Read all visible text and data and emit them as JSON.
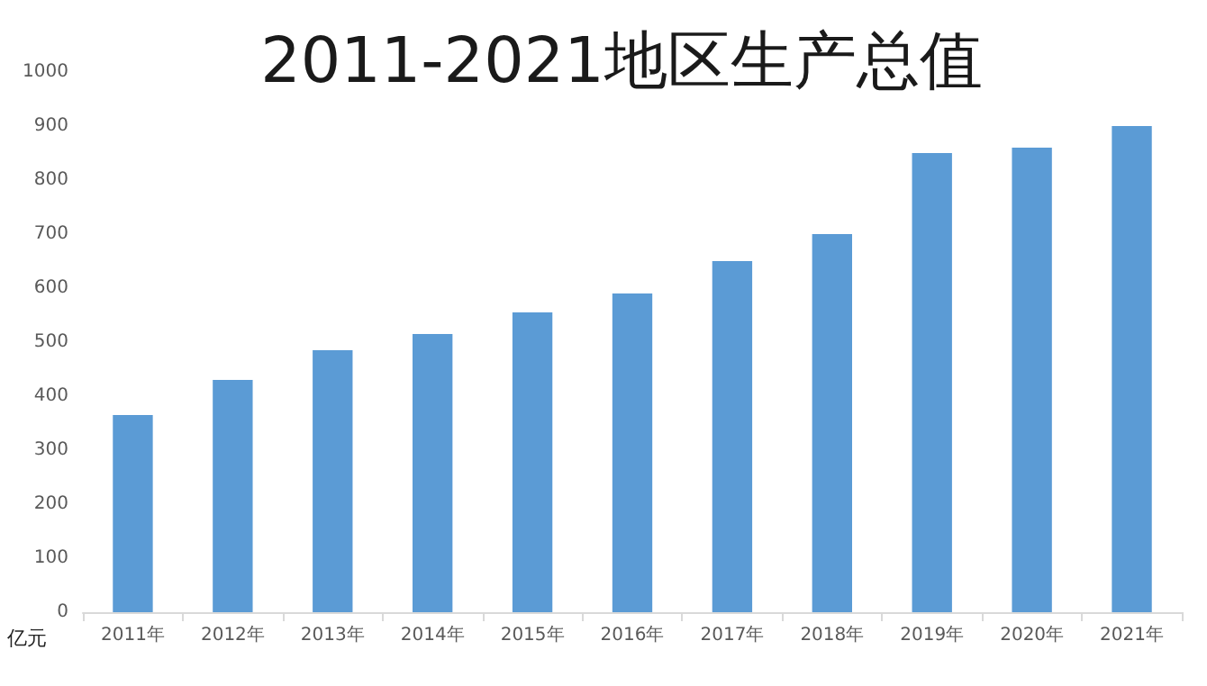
{
  "chart_data": {
    "type": "bar",
    "title": "2011-2021地区生产总值",
    "ylabel": "亿元",
    "categories": [
      "2011年",
      "2012年",
      "2013年",
      "2014年",
      "2015年",
      "2016年",
      "2017年",
      "2018年",
      "2019年",
      "2020年",
      "2021年"
    ],
    "values": [
      365,
      430,
      485,
      515,
      555,
      590,
      650,
      700,
      850,
      860,
      900
    ],
    "color": "#5b9bd5",
    "ylim": [
      0,
      1000
    ],
    "yticks": [
      0,
      100,
      200,
      300,
      400,
      500,
      600,
      700,
      800,
      900,
      1000
    ]
  }
}
